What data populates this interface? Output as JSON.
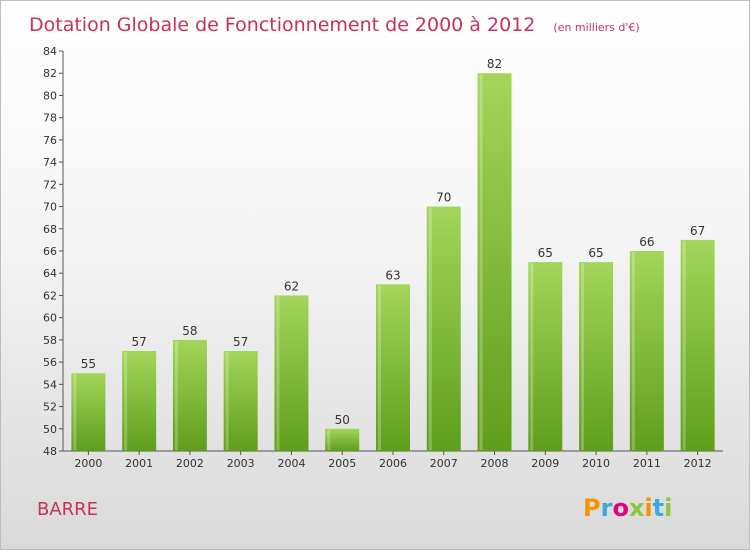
{
  "chart_data": {
    "type": "bar",
    "title": "Dotation Globale de Fonctionnement de 2000 à 2012",
    "subtitle": "(en milliers d'€)",
    "categories": [
      "2000",
      "2001",
      "2002",
      "2003",
      "2004",
      "2005",
      "2006",
      "2007",
      "2008",
      "2009",
      "2010",
      "2011",
      "2012"
    ],
    "values": [
      55,
      57,
      58,
      57,
      62,
      50,
      63,
      70,
      82,
      65,
      65,
      66,
      67
    ],
    "ylim": [
      48,
      84
    ],
    "yticks": [
      48,
      50,
      52,
      54,
      56,
      58,
      60,
      62,
      64,
      66,
      68,
      70,
      72,
      74,
      76,
      78,
      80,
      82,
      84
    ],
    "grid": false,
    "bar_color": "#7dbb2e",
    "bar_color_light": "#a3d65a",
    "bar_color_dark": "#5f9e1a"
  },
  "place_name": "BARRE",
  "logo": {
    "text": "Proxiti",
    "letter_colors": [
      "#f29400",
      "#3aa9dc",
      "#e5007d",
      "#8dc63f",
      "#f29400",
      "#3aa9dc",
      "#8dc63f"
    ]
  }
}
